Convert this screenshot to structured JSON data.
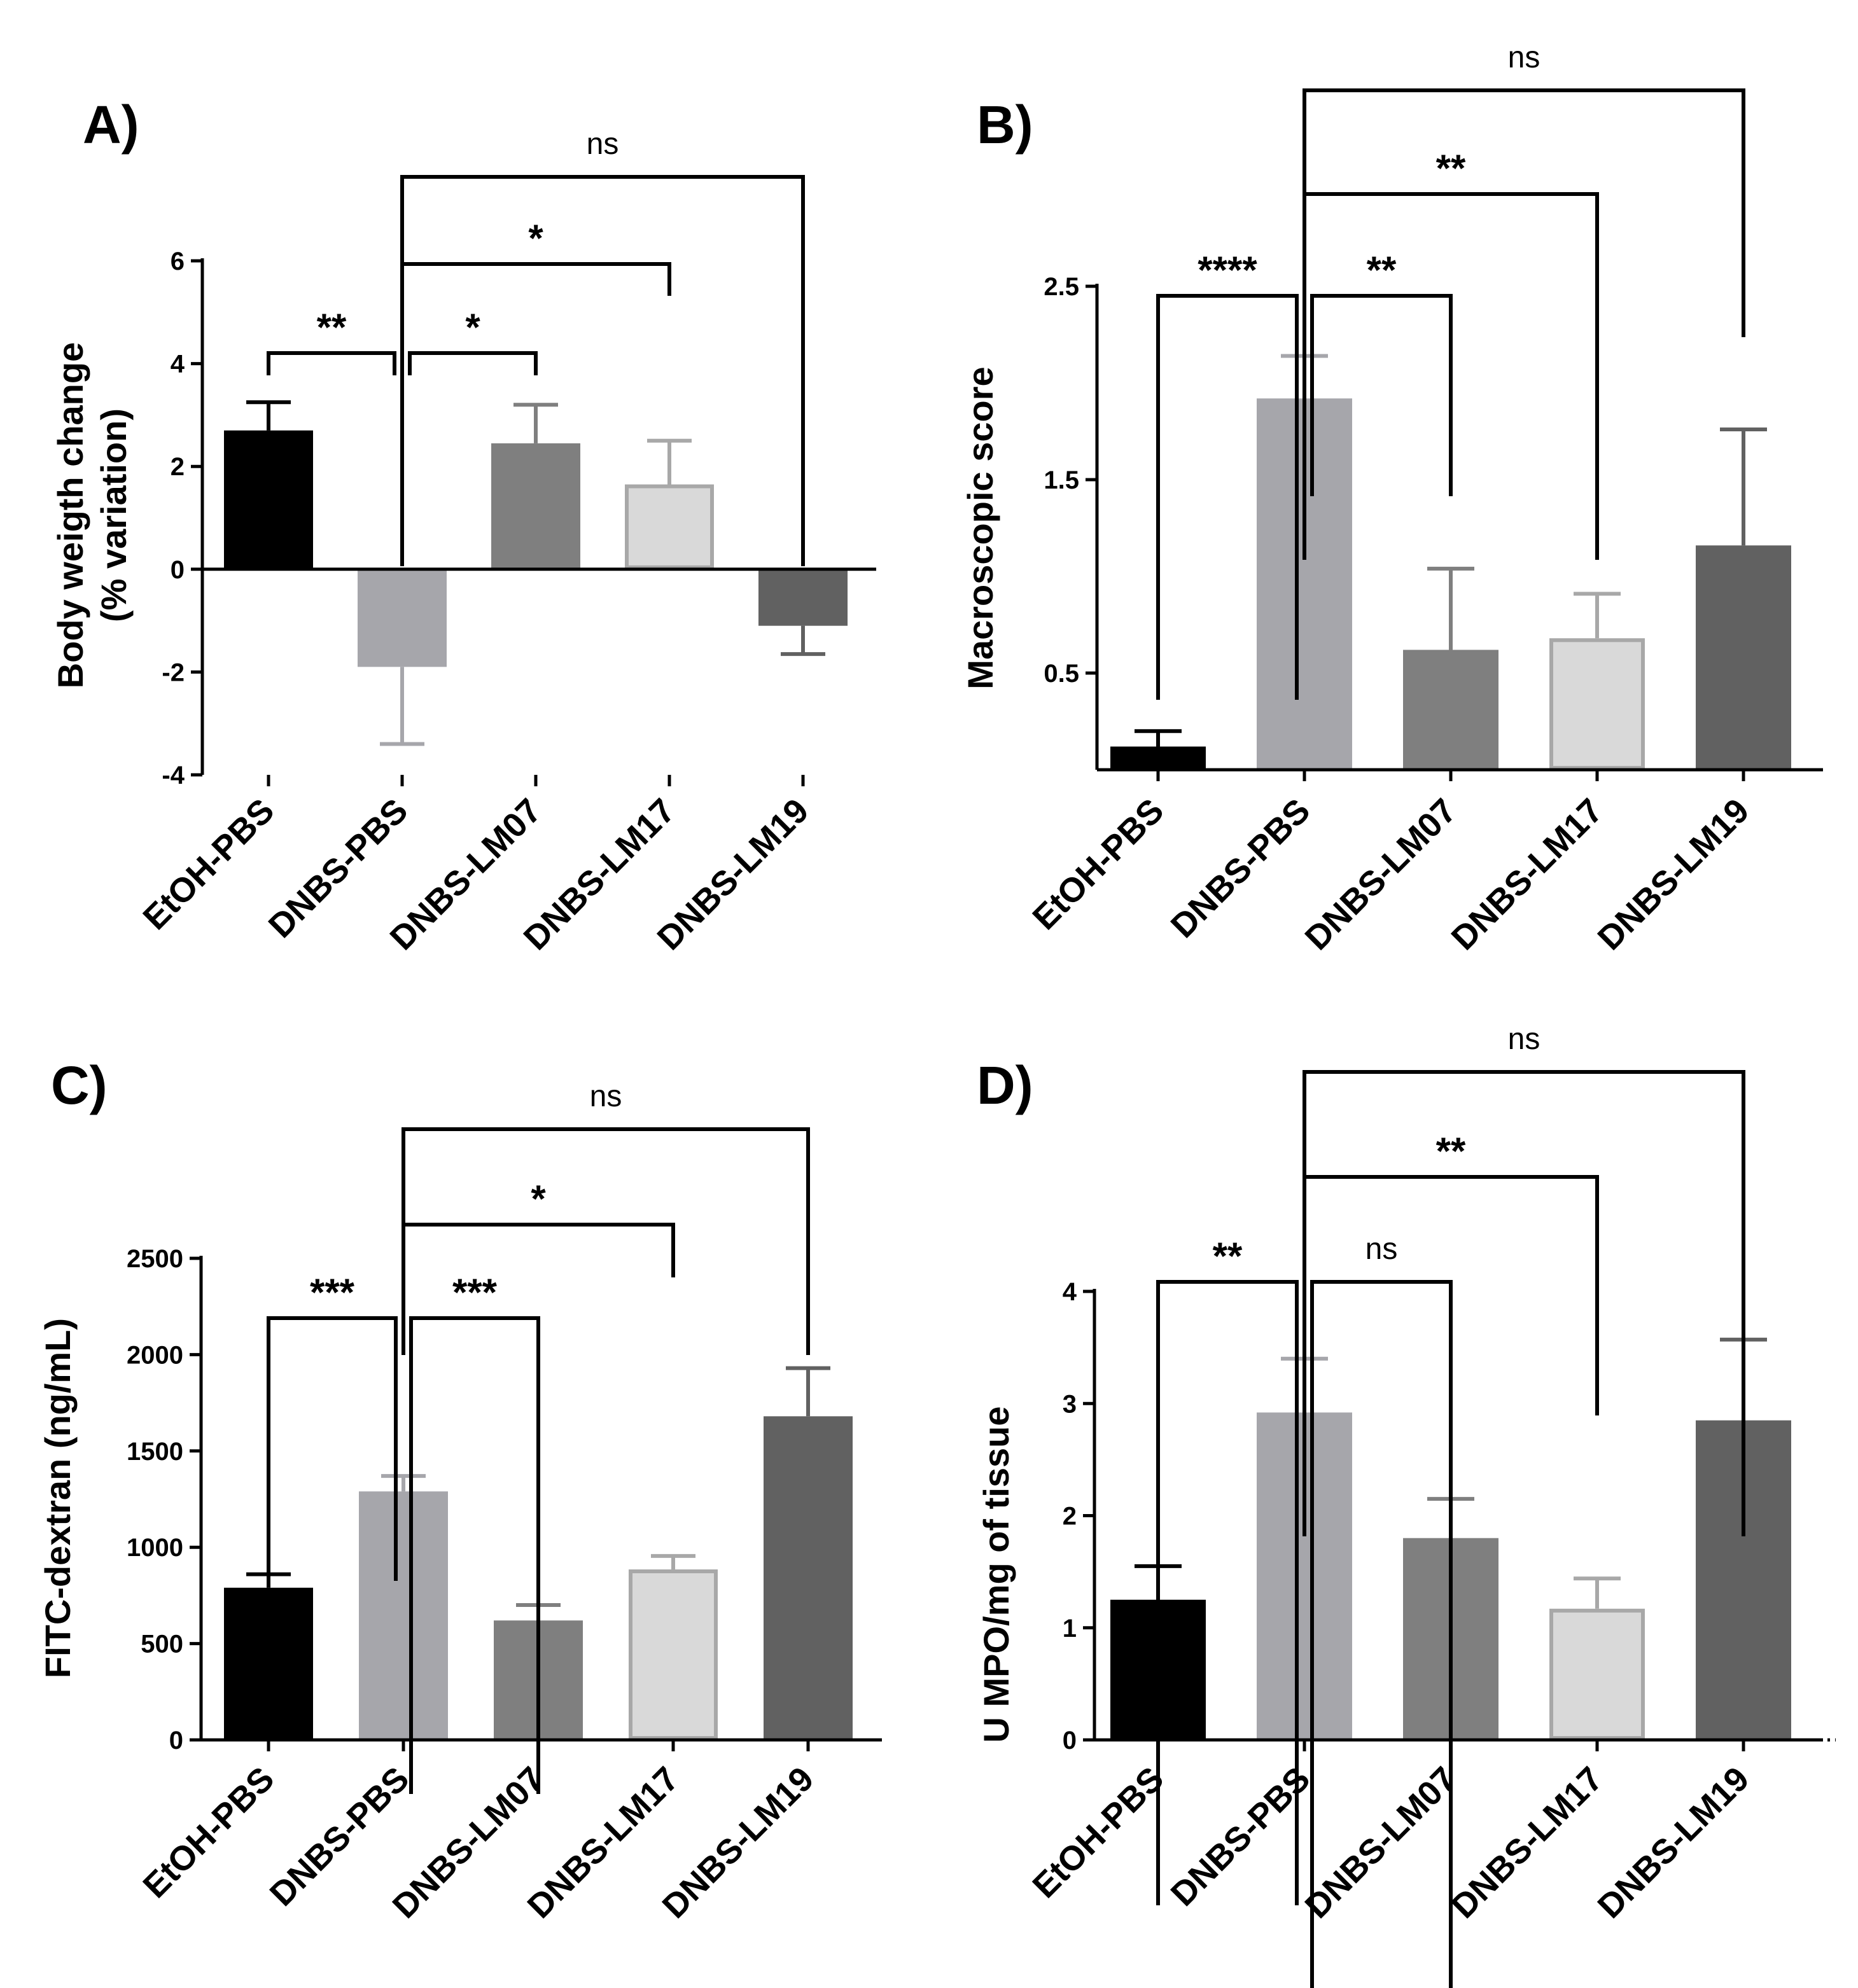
{
  "chart_data": [
    {
      "type": "bar",
      "panel_label": "A)",
      "categories": [
        "EtOH-PBS",
        "DNBS-PBS",
        "DNBS-LM07",
        "DNBS-LM17",
        "DNBS-LM19"
      ],
      "values": [
        2.7,
        -1.9,
        2.45,
        1.65,
        -1.1
      ],
      "errors": [
        0.55,
        1.5,
        0.75,
        0.85,
        0.55
      ],
      "colors": [
        "#000000",
        "#a6a6ab",
        "#7f7f7f",
        "#d9d9d9",
        "#616161"
      ],
      "outline_colors": [
        "#000000",
        "#a6a6ab",
        "#7f7f7f",
        "#a8a8a8",
        "#616161"
      ],
      "ylabel": [
        "Body weigth change",
        "(% variation)"
      ],
      "ylim": [
        -4,
        6
      ],
      "yticks": [
        6,
        4,
        2,
        0,
        -2,
        -4
      ],
      "ytick_labels": [
        "6",
        "4",
        "2",
        "0",
        "-2",
        "-4"
      ],
      "baseline": 0,
      "comparisons": [
        {
          "from": 1,
          "to": 0,
          "label": "**"
        },
        {
          "from": 1,
          "to": 2,
          "label": "*"
        },
        {
          "from": 1,
          "to": 3,
          "label": "*"
        },
        {
          "from": 1,
          "to": 4,
          "label": "ns"
        }
      ]
    },
    {
      "type": "bar",
      "panel_label": "B)",
      "categories": [
        "EtOH-PBS",
        "DNBS-PBS",
        "DNBS-LM07",
        "DNBS-LM17",
        "DNBS-LM19"
      ],
      "values": [
        0.12,
        1.92,
        0.62,
        0.68,
        1.16
      ],
      "errors": [
        0.08,
        0.22,
        0.42,
        0.23,
        0.6
      ],
      "colors": [
        "#000000",
        "#a6a6ab",
        "#7f7f7f",
        "#d9d9d9",
        "#616161"
      ],
      "outline_colors": [
        "#000000",
        "#a6a6ab",
        "#7f7f7f",
        "#a8a8a8",
        "#616161"
      ],
      "ylabel": [
        "Macroscopic score"
      ],
      "ylim": [
        0,
        2.5
      ],
      "yticks": [
        2.5,
        1.5,
        0.5
      ],
      "ytick_labels": [
        "2.5",
        "1.5",
        "0.5"
      ],
      "comparisons": [
        {
          "from": 1,
          "to": 0,
          "label": "****"
        },
        {
          "from": 1,
          "to": 2,
          "label": "**"
        },
        {
          "from": 1,
          "to": 3,
          "label": "**"
        },
        {
          "from": 1,
          "to": 4,
          "label": "ns"
        }
      ]
    },
    {
      "type": "bar",
      "panel_label": "C)",
      "categories": [
        "EtOH-PBS",
        "DNBS-PBS",
        "DNBS-LM07",
        "DNBS-LM17",
        "DNBS-LM19"
      ],
      "values": [
        790,
        1290,
        620,
        885,
        1680
      ],
      "errors": [
        70,
        80,
        80,
        70,
        250
      ],
      "colors": [
        "#000000",
        "#a6a6ab",
        "#7f7f7f",
        "#d9d9d9",
        "#616161"
      ],
      "outline_colors": [
        "#000000",
        "#a6a6ab",
        "#7f7f7f",
        "#a8a8a8",
        "#616161"
      ],
      "ylabel": [
        "FITC-dextran (ng/mL)"
      ],
      "ylim": [
        0,
        2500
      ],
      "yticks": [
        2500,
        2000,
        1500,
        1000,
        500,
        0
      ],
      "ytick_labels": [
        "2500",
        "2000",
        "1500",
        "1000",
        "500",
        "0"
      ],
      "comparisons": [
        {
          "from": 1,
          "to": 0,
          "label": "***"
        },
        {
          "from": 1,
          "to": 2,
          "label": "***"
        },
        {
          "from": 1,
          "to": 3,
          "label": "*"
        },
        {
          "from": 1,
          "to": 4,
          "label": "ns"
        }
      ]
    },
    {
      "type": "bar",
      "panel_label": "D)",
      "categories": [
        "EtOH-PBS",
        "DNBS-PBS",
        "DNBS-LM07",
        "DNBS-LM17",
        "DNBS-LM19"
      ],
      "values": [
        1.25,
        2.92,
        1.8,
        1.17,
        2.85
      ],
      "errors": [
        0.3,
        0.48,
        0.35,
        0.27,
        0.72
      ],
      "colors": [
        "#000000",
        "#a6a6ab",
        "#7f7f7f",
        "#d9d9d9",
        "#616161"
      ],
      "outline_colors": [
        "#000000",
        "#a6a6ab",
        "#7f7f7f",
        "#a8a8a8",
        "#616161"
      ],
      "ylabel": [
        "U MPO/mg of tissue"
      ],
      "ylim": [
        0,
        4
      ],
      "yticks": [
        4,
        3,
        2,
        1,
        0
      ],
      "ytick_labels": [
        "4",
        "3",
        "2",
        "1",
        "0"
      ],
      "dotted_zero_line": true,
      "comparisons": [
        {
          "from": 1,
          "to": 0,
          "label": "**"
        },
        {
          "from": 1,
          "to": 2,
          "label": "ns"
        },
        {
          "from": 1,
          "to": 3,
          "label": "**"
        },
        {
          "from": 1,
          "to": 4,
          "label": "ns"
        }
      ]
    }
  ]
}
